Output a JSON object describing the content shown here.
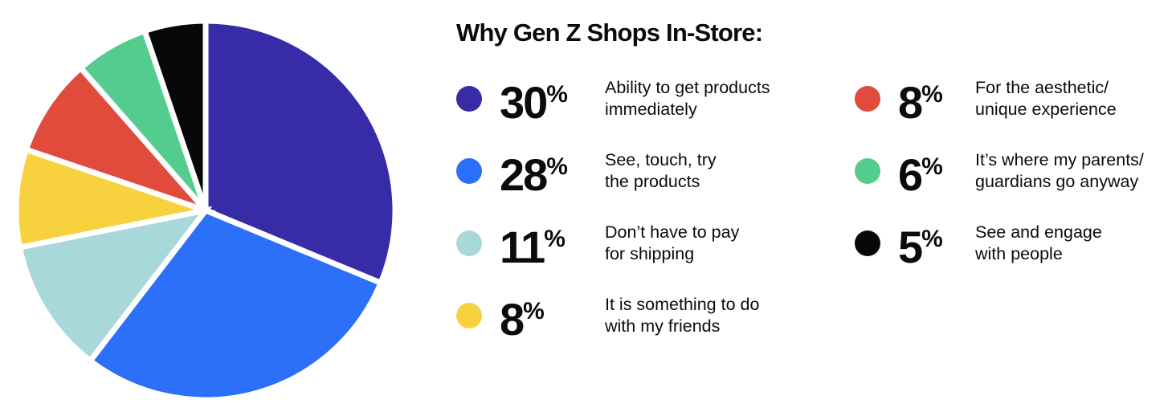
{
  "title": "Why Gen Z Shops In-Store:",
  "chart_data": {
    "type": "pie",
    "title": "Why Gen Z Shops In-Store:",
    "unit": "%",
    "labels": [
      "Ability to get products immediately",
      "See, touch, try the products",
      "Don’t have to pay for shipping",
      "It is something to do with my friends",
      "For the aesthetic/unique experience",
      "It’s where my parents/guardians go anyway",
      "See and engage with people"
    ],
    "values": [
      30,
      28,
      11,
      8,
      8,
      6,
      5
    ],
    "colors": [
      "#382BA8",
      "#2C70FA",
      "#A9D8DB",
      "#F8D23E",
      "#E04B3C",
      "#53CC8D",
      "#080808"
    ],
    "start": "top",
    "direction": "clockwise",
    "slice_border_color": "#FFFFFF",
    "slice_border_width_px": 7,
    "legend_position": "right"
  },
  "legend": {
    "columns": [
      {
        "items": [
          {
            "value": "30",
            "unit": "%",
            "color": "#382BA8",
            "description": "Ability to get products\nimmediately"
          },
          {
            "value": "28",
            "unit": "%",
            "color": "#2C70FA",
            "description": "See, touch, try\nthe products"
          },
          {
            "value": "11",
            "unit": "%",
            "color": "#A9D8DB",
            "description": "Don’t have to pay\nfor shipping"
          },
          {
            "value": "8",
            "unit": "%",
            "color": "#F8D23E",
            "description": "It is something to do\nwith my friends"
          }
        ]
      },
      {
        "items": [
          {
            "value": "8",
            "unit": "%",
            "color": "#E04B3C",
            "description": "For the aesthetic/\nunique experience"
          },
          {
            "value": "6",
            "unit": "%",
            "color": "#53CC8D",
            "description": "It’s where my parents/\nguardians go anyway"
          },
          {
            "value": "5",
            "unit": "%",
            "color": "#080808",
            "description": "See and engage\nwith people"
          }
        ]
      }
    ]
  }
}
